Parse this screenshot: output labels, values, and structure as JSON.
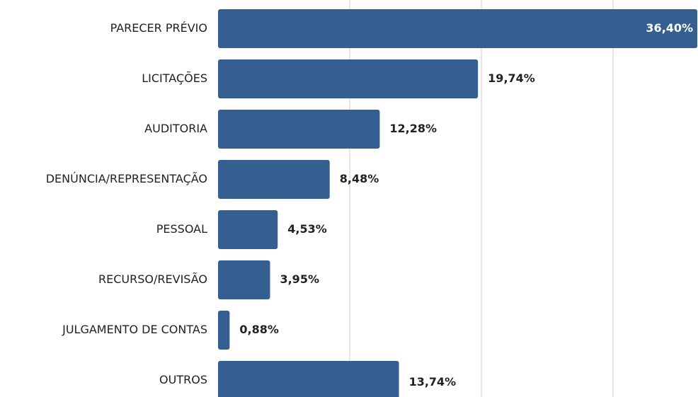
{
  "chart_data": {
    "type": "hbar",
    "categories": [
      "PARECER PRÉVIO",
      "LICITAÇÕES",
      "AUDITORIA",
      "DENÚNCIA/REPRESENTAÇÃO",
      "PESSOAL",
      "RECURSO/REVISÃO",
      "JULGAMENTO DE CONTAS",
      "OUTROS"
    ],
    "values": [
      36.4,
      19.74,
      12.28,
      8.48,
      4.53,
      3.95,
      0.88,
      13.74
    ],
    "value_labels": [
      "36,40%",
      "19,74%",
      "12,28%",
      "8,48%",
      "4,53%",
      "3,95%",
      "0,88%",
      "13,74%"
    ],
    "color": "#355f91",
    "xlim": [
      0,
      36.45
    ],
    "xticks": [
      10,
      20,
      30
    ],
    "grid": true
  }
}
